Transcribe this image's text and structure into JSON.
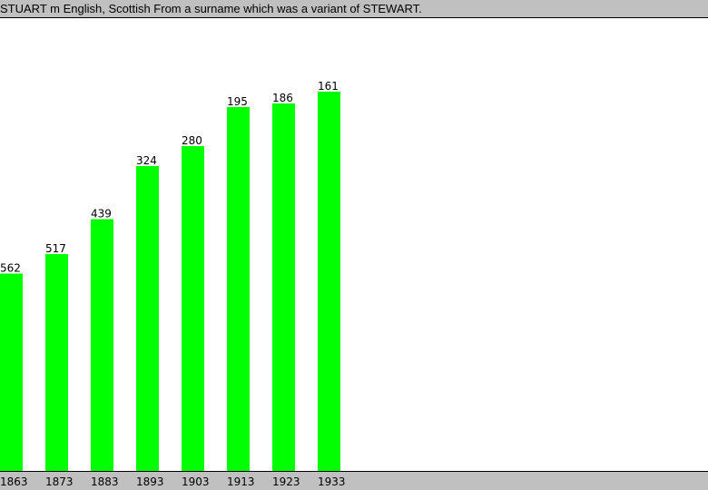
{
  "header": {
    "title": "STUART m English, Scottish From a surname which was a variant of STEWART."
  },
  "colors": {
    "bar": "#00ff00",
    "header_bg": "#c0c0c0",
    "axis_bg": "#c0c0c0",
    "text": "#000000"
  },
  "chart_data": {
    "type": "bar",
    "categories": [
      "1863",
      "1873",
      "1883",
      "1893",
      "1903",
      "1913",
      "1923",
      "1933"
    ],
    "values": [
      562,
      517,
      439,
      324,
      280,
      195,
      186,
      161
    ],
    "bar_heights_relative": [
      0.437,
      0.48,
      0.557,
      0.674,
      0.718,
      0.804,
      0.812,
      0.838
    ],
    "title": "STUART m English, Scottish From a surname which was a variant of STEWART.",
    "xlabel": "",
    "ylabel": "",
    "grid": false,
    "legend": "none",
    "y_axis": "inverted rank (lower rank drawn taller)"
  }
}
